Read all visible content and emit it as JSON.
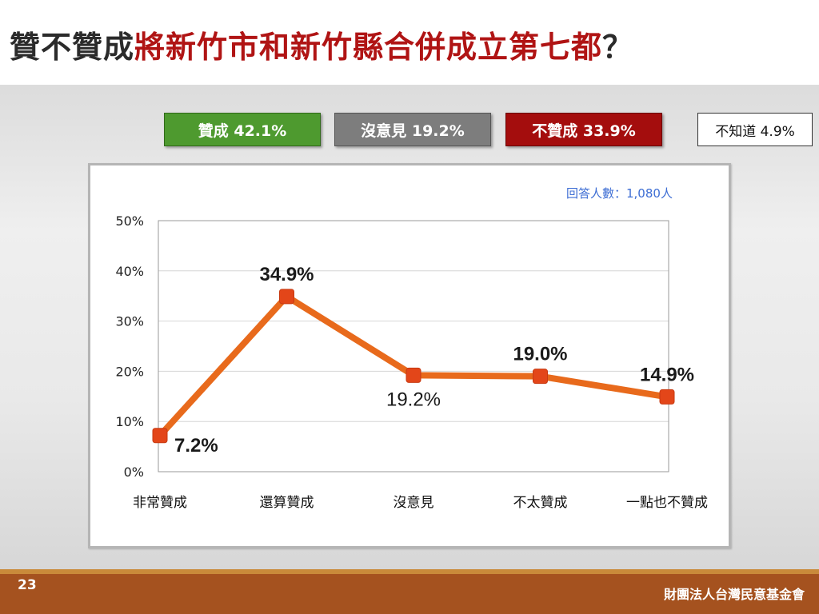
{
  "title": {
    "part1": "贊不贊成",
    "part2": "將新竹市和新竹縣合併成立第七都",
    "part3": "？"
  },
  "summary": {
    "agree": "贊成 42.1%",
    "no_opinion": "沒意見 19.2%",
    "disagree": "不贊成 33.9%",
    "unknown": "不知道 4.9%"
  },
  "respondents": "回答人數：1,080人",
  "page_number": "23",
  "organization": "財團法人台灣民意基金會",
  "colors": {
    "line": "#e86a1c",
    "marker": "#e34619",
    "agree": "#4e9a2f",
    "no_opinion": "#7d7d7d",
    "disagree": "#a40d0d",
    "footer": "#a5521f"
  },
  "chart_data": {
    "type": "line",
    "categories": [
      "非常贊成",
      "還算贊成",
      "沒意見",
      "不太贊成",
      "一點也不贊成"
    ],
    "values": [
      7.2,
      34.9,
      19.2,
      19.0,
      14.9
    ],
    "data_labels": [
      "7.2%",
      "34.9%",
      "19.2%",
      "19.0%",
      "14.9%"
    ],
    "label_position": [
      "below-right",
      "above",
      "below",
      "above",
      "above"
    ],
    "label_bold": [
      true,
      true,
      false,
      true,
      true
    ],
    "yticks": [
      "0%",
      "10%",
      "20%",
      "30%",
      "40%",
      "50%"
    ],
    "ylim": [
      0,
      50
    ],
    "grid": true,
    "xlabel": "",
    "ylabel": ""
  }
}
